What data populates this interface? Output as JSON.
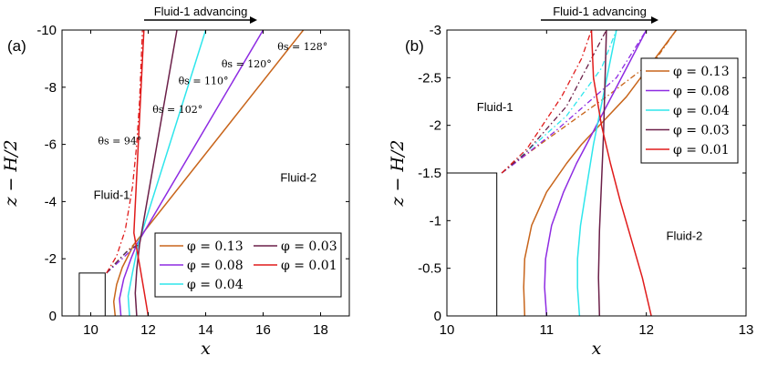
{
  "chart_data": [
    {
      "panel_label": "(a)",
      "type": "line",
      "xlabel": "x",
      "ylabel": "z − H/2",
      "xlim": [
        9,
        19
      ],
      "ylim": [
        0,
        -10
      ],
      "xticks": [
        "10",
        "12",
        "14",
        "16",
        "18"
      ],
      "yticks": [
        "0",
        "-2",
        "-4",
        "-6",
        "-8",
        "-10"
      ],
      "arrow_label": "Fluid-1 advancing",
      "regions": [
        {
          "text": "Fluid-1",
          "x": 10.1,
          "y": -4.1
        },
        {
          "text": "Fluid-2",
          "x": 16.6,
          "y": -4.7
        }
      ],
      "annotations": [
        {
          "text": "θs = 94°",
          "x": 10.25,
          "y": -6.0
        },
        {
          "text": "θs = 102°",
          "x": 12.15,
          "y": -7.1
        },
        {
          "text": "θs = 110°",
          "x": 13.05,
          "y": -8.1
        },
        {
          "text": "θs = 120°",
          "x": 14.55,
          "y": -8.7
        },
        {
          "text": "θs = 128°",
          "x": 16.5,
          "y": -9.3
        }
      ],
      "wall": [
        [
          9.6,
          0
        ],
        [
          9.6,
          -1.5
        ],
        [
          10.5,
          -1.5
        ],
        [
          10.5,
          0
        ]
      ],
      "legend": {
        "position": "bottom-right",
        "columns": 2
      },
      "series": [
        {
          "name": "φ = 0.13",
          "color": "#c8651b",
          "curve": [
            [
              10.85,
              0
            ],
            [
              10.8,
              -0.5
            ],
            [
              10.9,
              -1.1
            ],
            [
              11.1,
              -1.7
            ],
            [
              11.5,
              -2.5
            ],
            [
              17.4,
              -10
            ]
          ],
          "dashed": [
            [
              10.55,
              -1.5
            ],
            [
              11.0,
              -2.0
            ],
            [
              11.5,
              -2.5
            ]
          ]
        },
        {
          "name": "φ = 0.08",
          "color": "#8e2be2",
          "curve": [
            [
              11.05,
              0
            ],
            [
              11.0,
              -0.6
            ],
            [
              11.15,
              -1.3
            ],
            [
              11.4,
              -2.0
            ],
            [
              11.6,
              -2.5
            ],
            [
              16.0,
              -10
            ]
          ],
          "dashed": [
            [
              10.55,
              -1.5
            ],
            [
              11.1,
              -2.0
            ],
            [
              11.6,
              -2.5
            ]
          ]
        },
        {
          "name": "φ = 0.04",
          "color": "#2ee6ec",
          "curve": [
            [
              11.35,
              0
            ],
            [
              11.3,
              -0.7
            ],
            [
              11.45,
              -1.5
            ],
            [
              11.65,
              -2.5
            ],
            [
              14.0,
              -10
            ]
          ],
          "dashed": [
            [
              10.55,
              -1.5
            ],
            [
              11.2,
              -2.2
            ],
            [
              11.65,
              -2.5
            ]
          ]
        },
        {
          "name": "φ = 0.03",
          "color": "#6b1f48",
          "curve": [
            [
              11.6,
              0
            ],
            [
              11.55,
              -0.8
            ],
            [
              11.6,
              -1.6
            ],
            [
              11.7,
              -2.5
            ],
            [
              13.0,
              -10
            ]
          ],
          "dashed": [
            [
              10.55,
              -1.5
            ],
            [
              11.3,
              -2.3
            ],
            [
              11.7,
              -2.5
            ]
          ]
        },
        {
          "name": "φ = 0.01",
          "color": "#e01b1b",
          "curve": [
            [
              12.0,
              0
            ],
            [
              11.85,
              -0.9
            ],
            [
              11.7,
              -1.8
            ],
            [
              11.5,
              -2.9
            ],
            [
              11.85,
              -10
            ]
          ],
          "dashed": [
            [
              10.55,
              -1.5
            ],
            [
              10.9,
              -2.1
            ],
            [
              11.2,
              -3.0
            ],
            [
              11.45,
              -4.5
            ],
            [
              11.6,
              -6.0
            ],
            [
              11.7,
              -7.5
            ],
            [
              11.8,
              -10
            ]
          ]
        }
      ]
    },
    {
      "panel_label": "(b)",
      "type": "line",
      "xlabel": "x",
      "ylabel": "z − H/2",
      "xlim": [
        10,
        13
      ],
      "ylim": [
        0,
        -3
      ],
      "xticks": [
        "10",
        "11",
        "12",
        "13"
      ],
      "yticks": [
        "0",
        "-0.5",
        "-1",
        "-1.5",
        "-2",
        "-2.5",
        "-3"
      ],
      "arrow_label": "Fluid-1 advancing",
      "regions": [
        {
          "text": "Fluid-1",
          "x": 10.3,
          "y": -2.15
        },
        {
          "text": "Fluid-2",
          "x": 12.2,
          "y": -0.8
        }
      ],
      "wall": [
        [
          10.0,
          0
        ],
        [
          10.0,
          -1.5
        ],
        [
          10.5,
          -1.5
        ],
        [
          10.5,
          0
        ]
      ],
      "legend": {
        "position": "top-right",
        "columns": 1
      },
      "series": [
        {
          "name": "φ = 0.13",
          "color": "#c8651b",
          "curve": [
            [
              10.78,
              0
            ],
            [
              10.77,
              -0.3
            ],
            [
              10.78,
              -0.6
            ],
            [
              10.85,
              -0.95
            ],
            [
              11.0,
              -1.3
            ],
            [
              11.2,
              -1.6
            ],
            [
              11.35,
              -1.8
            ],
            [
              11.8,
              -2.3
            ],
            [
              12.3,
              -3.0
            ]
          ],
          "dashed": [
            [
              10.55,
              -1.5
            ],
            [
              10.65,
              -1.58
            ],
            [
              11.0,
              -1.85
            ],
            [
              11.6,
              -2.3
            ],
            [
              12.1,
              -2.7
            ],
            [
              12.3,
              -3.0
            ]
          ]
        },
        {
          "name": "φ = 0.08",
          "color": "#8e2be2",
          "curve": [
            [
              11.0,
              0
            ],
            [
              10.98,
              -0.3
            ],
            [
              10.99,
              -0.6
            ],
            [
              11.05,
              -0.95
            ],
            [
              11.17,
              -1.3
            ],
            [
              11.3,
              -1.6
            ],
            [
              11.4,
              -1.8
            ],
            [
              12.0,
              -3.0
            ]
          ],
          "dashed": [
            [
              10.55,
              -1.5
            ],
            [
              10.68,
              -1.6
            ],
            [
              11.1,
              -1.95
            ],
            [
              11.7,
              -2.5
            ],
            [
              12.0,
              -3.0
            ]
          ]
        },
        {
          "name": "φ = 0.04",
          "color": "#2ee6ec",
          "curve": [
            [
              11.33,
              0
            ],
            [
              11.31,
              -0.3
            ],
            [
              11.31,
              -0.6
            ],
            [
              11.34,
              -0.95
            ],
            [
              11.4,
              -1.35
            ],
            [
              11.47,
              -1.8
            ],
            [
              11.7,
              -3.0
            ]
          ],
          "dashed": [
            [
              10.55,
              -1.5
            ],
            [
              10.72,
              -1.65
            ],
            [
              11.2,
              -2.1
            ],
            [
              11.55,
              -2.6
            ],
            [
              11.7,
              -3.0
            ]
          ]
        },
        {
          "name": "φ = 0.03",
          "color": "#6b1f48",
          "curve": [
            [
              11.53,
              0
            ],
            [
              11.52,
              -0.4
            ],
            [
              11.53,
              -0.9
            ],
            [
              11.55,
              -1.4
            ],
            [
              11.57,
              -1.9
            ],
            [
              11.6,
              -3.0
            ]
          ],
          "dashed": [
            [
              10.55,
              -1.5
            ],
            [
              10.78,
              -1.7
            ],
            [
              11.2,
              -2.2
            ],
            [
              11.45,
              -2.7
            ],
            [
              11.6,
              -3.0
            ]
          ]
        },
        {
          "name": "φ = 0.01",
          "color": "#e01b1b",
          "curve": [
            [
              12.05,
              0
            ],
            [
              11.96,
              -0.4
            ],
            [
              11.85,
              -0.8
            ],
            [
              11.74,
              -1.2
            ],
            [
              11.64,
              -1.6
            ],
            [
              11.55,
              -2.0
            ],
            [
              11.47,
              -2.5
            ],
            [
              11.45,
              -3.0
            ]
          ],
          "dashed": [
            [
              10.55,
              -1.5
            ],
            [
              10.8,
              -1.75
            ],
            [
              11.15,
              -2.3
            ],
            [
              11.35,
              -2.7
            ],
            [
              11.45,
              -3.0
            ]
          ]
        }
      ]
    }
  ]
}
